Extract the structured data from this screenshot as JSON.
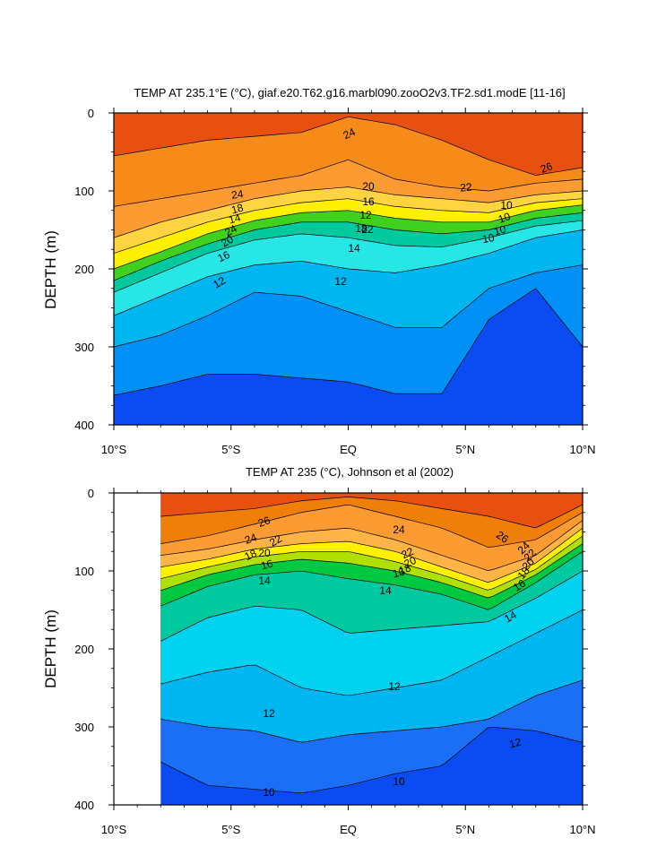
{
  "chart_data": [
    {
      "type": "heatmap",
      "title": "TEMP AT 235.1°E (°C), giaf.e20.T62.g16.marbl090.zooO2v3.TF2.sd1.modE [11-16]",
      "ylabel": "DEPTH (m)",
      "xlabel": "",
      "x_ticks": [
        "10°S",
        "5°S",
        "EQ",
        "5°N",
        "10°N"
      ],
      "y_ticks": [
        "0",
        "100",
        "200",
        "300",
        "400"
      ],
      "xlim": [
        -10,
        10
      ],
      "ylim": [
        400,
        0
      ],
      "y_reversed": true,
      "contour_labels": [
        "24",
        "26",
        "24",
        "22",
        "20",
        "18",
        "16",
        "14",
        "12",
        "24",
        "22",
        "20",
        "18",
        "16",
        "14",
        "12",
        "12",
        "10",
        "10",
        "10",
        "10"
      ],
      "isotherm_depths": {
        "x": [
          -10,
          -8,
          -6,
          -4,
          -2,
          0,
          2,
          4,
          6,
          8,
          10
        ],
        "t26": [
          55,
          45,
          35,
          30,
          25,
          5,
          15,
          35,
          60,
          80,
          70
        ],
        "t24": [
          120,
          110,
          100,
          90,
          80,
          60,
          85,
          95,
          100,
          90,
          85
        ],
        "t22": [
          160,
          140,
          125,
          110,
          100,
          95,
          105,
          110,
          115,
          105,
          100
        ],
        "t20": [
          180,
          160,
          140,
          125,
          115,
          110,
          120,
          125,
          128,
          115,
          110
        ],
        "t18": [
          200,
          178,
          155,
          138,
          128,
          125,
          135,
          140,
          140,
          125,
          118
        ],
        "t16": [
          215,
          190,
          168,
          150,
          140,
          140,
          150,
          155,
          150,
          135,
          128
        ],
        "t14": [
          230,
          205,
          180,
          163,
          155,
          160,
          170,
          172,
          160,
          145,
          138
        ],
        "t12": [
          260,
          235,
          210,
          195,
          190,
          200,
          205,
          195,
          180,
          160,
          150
        ],
        "t11": [
          300,
          285,
          260,
          230,
          235,
          255,
          275,
          275,
          225,
          205,
          195
        ],
        "t10": [
          362,
          350,
          335,
          335,
          340,
          345,
          360,
          360,
          265,
          225,
          300
        ]
      }
    },
    {
      "type": "heatmap",
      "title": "TEMP AT 235 (°C), Johnson et al (2002)",
      "ylabel": "DEPTH (m)",
      "xlabel": "",
      "x_ticks": [
        "10°S",
        "5°S",
        "EQ",
        "5°N",
        "10°N"
      ],
      "y_ticks": [
        "0",
        "100",
        "200",
        "300",
        "400"
      ],
      "xlim": [
        -10,
        10
      ],
      "ylim": [
        400,
        0
      ],
      "y_reversed": true,
      "data_x_range": [
        -8,
        10
      ],
      "contour_labels": [
        "26",
        "24",
        "22",
        "20",
        "18",
        "16",
        "14",
        "24",
        "22",
        "20",
        "18",
        "16",
        "14",
        "26",
        "24",
        "22",
        "20",
        "18",
        "16",
        "14",
        "12",
        "12",
        "12",
        "10",
        "10",
        "10"
      ],
      "isotherm_depths": {
        "x": [
          -8,
          -6,
          -4,
          -2,
          0,
          2,
          4,
          6,
          8,
          10
        ],
        "t26": [
          30,
          25,
          20,
          10,
          5,
          10,
          20,
          30,
          45,
          15
        ],
        "t24": [
          65,
          55,
          40,
          25,
          15,
          30,
          45,
          70,
          60,
          25
        ],
        "t22": [
          80,
          72,
          60,
          50,
          45,
          60,
          80,
          100,
          80,
          35
        ],
        "t20": [
          95,
          85,
          72,
          65,
          62,
          75,
          95,
          115,
          90,
          45
        ],
        "t18": [
          110,
          95,
          82,
          75,
          75,
          88,
          105,
          125,
          98,
          55
        ],
        "t16": [
          125,
          105,
          92,
          85,
          90,
          100,
          115,
          135,
          105,
          65
        ],
        "t14": [
          145,
          120,
          105,
          100,
          110,
          118,
          130,
          150,
          115,
          75
        ],
        "t13": [
          190,
          160,
          145,
          150,
          180,
          175,
          170,
          165,
          135,
          100
        ],
        "t12": [
          245,
          230,
          220,
          250,
          260,
          250,
          240,
          210,
          180,
          150
        ],
        "t11": [
          290,
          300,
          305,
          320,
          310,
          305,
          300,
          290,
          260,
          240
        ],
        "t10": [
          345,
          375,
          380,
          385,
          375,
          360,
          350,
          300,
          305,
          320
        ]
      }
    }
  ]
}
